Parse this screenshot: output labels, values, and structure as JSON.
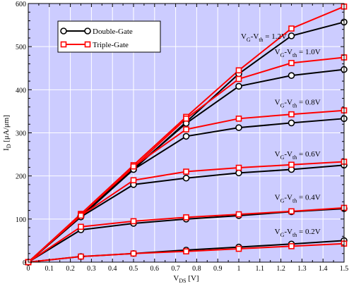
{
  "chart_data": {
    "type": "line",
    "xlabel": {
      "main": "V",
      "sub": "DS",
      "unit": " [V]"
    },
    "ylabel": {
      "main": "I",
      "sub": "D",
      "unit": " [μA/μm]"
    },
    "xlim": [
      0,
      1.5
    ],
    "ylim": [
      0,
      600
    ],
    "xticks": [
      "0",
      "0.1",
      "0.2",
      "0.3",
      "0.4",
      "0.5",
      "0.6",
      "0.7",
      "0.8",
      "0.9",
      "1",
      "1.1",
      "1.2",
      "1.3",
      "1.4",
      "1.5"
    ],
    "yticks": [
      "0",
      "100",
      "200",
      "300",
      "400",
      "500",
      "600"
    ],
    "grid": true,
    "background": "#ccccff",
    "legend": {
      "placement": "top-left",
      "entries": [
        {
          "label": "Double-Gate",
          "color": "#000000",
          "marker": "circle"
        },
        {
          "label": "Triple-Gate",
          "color": "#ff0000",
          "marker": "square"
        }
      ]
    },
    "x": [
      0,
      0.25,
      0.5,
      0.75,
      1.0,
      1.25,
      1.5
    ],
    "series": [
      {
        "group": "Double-Gate",
        "curve": "1.2V",
        "color": "#000000",
        "marker": "circle",
        "values": [
          0,
          105,
          215,
          325,
          437,
          525,
          557
        ]
      },
      {
        "group": "Triple-Gate",
        "curve": "1.2V",
        "color": "#ff0000",
        "marker": "square",
        "values": [
          0,
          112,
          225,
          337,
          445,
          542,
          593
        ]
      },
      {
        "group": "Double-Gate",
        "curve": "1.0V",
        "color": "#000000",
        "marker": "circle",
        "values": [
          0,
          108,
          217,
          322,
          408,
          433,
          447
        ]
      },
      {
        "group": "Triple-Gate",
        "curve": "1.0V",
        "color": "#ff0000",
        "marker": "square",
        "values": [
          0,
          110,
          220,
          333,
          425,
          462,
          475
        ]
      },
      {
        "group": "Double-Gate",
        "curve": "0.8V",
        "color": "#000000",
        "marker": "circle",
        "values": [
          0,
          108,
          215,
          292,
          312,
          323,
          333
        ]
      },
      {
        "group": "Triple-Gate",
        "curve": "0.8V",
        "color": "#ff0000",
        "marker": "square",
        "values": [
          0,
          110,
          222,
          308,
          333,
          343,
          352
        ]
      },
      {
        "group": "Double-Gate",
        "curve": "0.6V",
        "color": "#000000",
        "marker": "circle",
        "values": [
          0,
          105,
          180,
          195,
          207,
          215,
          225
        ]
      },
      {
        "group": "Triple-Gate",
        "curve": "0.6V",
        "color": "#ff0000",
        "marker": "square",
        "values": [
          0,
          108,
          190,
          210,
          219,
          226,
          233
        ]
      },
      {
        "group": "Double-Gate",
        "curve": "0.4V",
        "color": "#000000",
        "marker": "circle",
        "values": [
          0,
          75,
          90,
          100,
          108,
          117,
          124
        ]
      },
      {
        "group": "Triple-Gate",
        "curve": "0.4V",
        "color": "#ff0000",
        "marker": "square",
        "values": [
          0,
          82,
          95,
          104,
          111,
          118,
          126
        ]
      },
      {
        "group": "Double-Gate",
        "curve": "0.2V",
        "color": "#000000",
        "marker": "circle",
        "values": [
          0,
          13,
          20,
          28,
          35,
          42,
          50
        ]
      },
      {
        "group": "Triple-Gate",
        "curve": "0.2V",
        "color": "#ff0000",
        "marker": "square",
        "values": [
          0,
          13,
          20,
          25,
          31,
          37,
          43
        ]
      }
    ],
    "annotations": [
      {
        "prefix": "V",
        "sub1": "G",
        "mid": "-V",
        "sub2": "th",
        "suffix": " = 1.2V",
        "x": 1.01,
        "y": 518
      },
      {
        "prefix": "V",
        "sub1": "G",
        "mid": "-V",
        "sub2": "th",
        "suffix": " = 1.0V",
        "x": 1.17,
        "y": 482
      },
      {
        "prefix": "V",
        "sub1": "G",
        "mid": "-V",
        "sub2": "th",
        "suffix": " = 0.8V",
        "x": 1.17,
        "y": 365
      },
      {
        "prefix": "V",
        "sub1": "G",
        "mid": "-V",
        "sub2": "th",
        "suffix": " = 0.6V",
        "x": 1.17,
        "y": 245
      },
      {
        "prefix": "V",
        "sub1": "G",
        "mid": "-V",
        "sub2": "th",
        "suffix": " = 0.4V",
        "x": 1.17,
        "y": 145
      },
      {
        "prefix": "V",
        "sub1": "G",
        "mid": "-V",
        "sub2": "th",
        "suffix": " = 0.2V",
        "x": 1.17,
        "y": 65
      }
    ]
  }
}
